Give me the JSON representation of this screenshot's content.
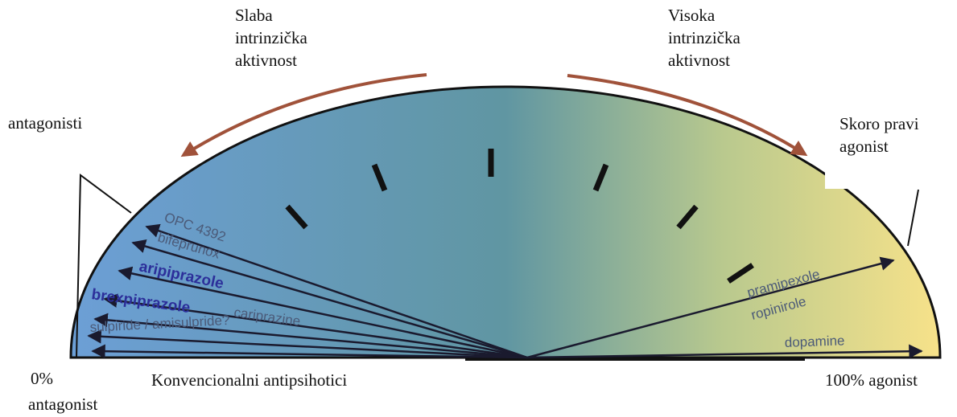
{
  "labels": {
    "low": [
      "Slaba",
      "intrinzička",
      "aktivnost"
    ],
    "high": [
      "Visoka",
      "intrinzička",
      "aktivnost"
    ],
    "antagonists": "antagonisti",
    "near_full": [
      "Skoro pravi",
      "agonist"
    ],
    "zero": [
      "0%",
      "antagonist"
    ],
    "conventional": "Konvencionalni antipsihotici",
    "full": "100% agonist"
  },
  "drugs": [
    "OPC 4392",
    "bifeprunox",
    "aripiprazole",
    "brexpiprazole",
    "cariprazine",
    "sulpiride / amisulpride?",
    "pramipexole",
    "ropinirole",
    "dopamine"
  ]
}
